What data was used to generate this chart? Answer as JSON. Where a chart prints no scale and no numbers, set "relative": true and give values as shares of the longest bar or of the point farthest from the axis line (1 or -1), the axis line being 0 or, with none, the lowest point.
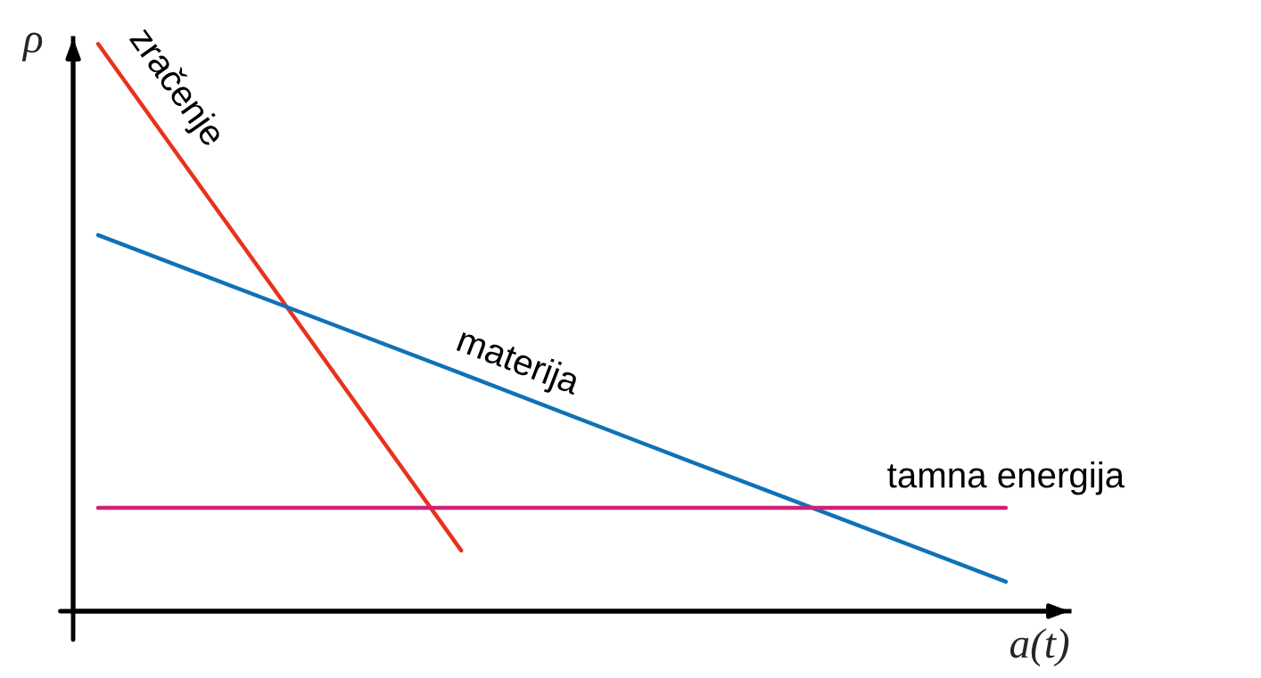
{
  "chart_data": {
    "type": "line",
    "relative": true,
    "xlabel": "a(t)",
    "ylabel": "ρ",
    "legend": false,
    "marker": "none",
    "line_style": "solid",
    "categories": [
      null,
      null,
      null,
      null,
      null,
      null
    ],
    "series": [
      {
        "name": "zračenje",
        "color": "#e8321e",
        "values": [
          1,
          0.554,
          0.107,
          null,
          null,
          null
        ]
      },
      {
        "name": "materija",
        "color": "#0f72b8",
        "values": [
          0.663,
          0.541,
          0.419,
          0.296,
          0.174,
          0.052
        ]
      },
      {
        "name": "tamna energija",
        "color": "#cc2277",
        "values": [
          0.182,
          0.182,
          0.182,
          0.182,
          0.182,
          0.182
        ]
      }
    ]
  }
}
